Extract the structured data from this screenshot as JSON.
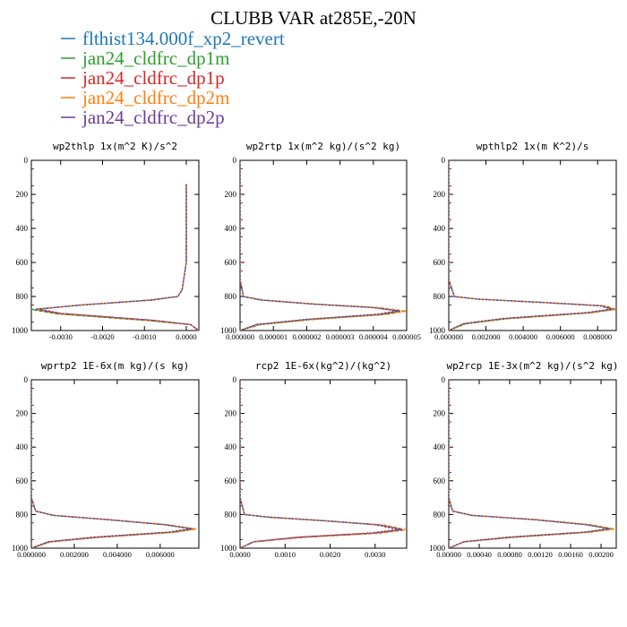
{
  "title": "CLUBB VAR at285E,-20N",
  "legend": [
    {
      "label": "flthist134.000f_xp2_revert",
      "color": "#1f77b4"
    },
    {
      "label": "jan24_cldfrc_dp1m",
      "color": "#2ca02c"
    },
    {
      "label": "jan24_cldfrc_dp1p",
      "color": "#d62728"
    },
    {
      "label": "jan24_cldfrc_dp2m",
      "color": "#ff7f0e"
    },
    {
      "label": "jan24_cldfrc_dp2p",
      "color": "#6a3d9a"
    }
  ],
  "chart_data": [
    {
      "type": "line",
      "title": "wp2thlp  1x(m^2 K)/s^2",
      "xlim": [
        -0.0037,
        0.0003
      ],
      "ylim": [
        1000,
        0
      ],
      "invert_y": true,
      "xticks": [
        -0.003,
        -0.002,
        -0.001,
        0.0
      ],
      "xtick_labels": [
        "-0.0030",
        "-0.0020",
        "-0.0010",
        "0.0000"
      ],
      "yticks": [
        0,
        200,
        400,
        600,
        800,
        1000
      ],
      "ytick_labels": [
        "0",
        "200",
        "400",
        "600",
        "800",
        "1000"
      ],
      "series": [
        {
          "color": "#1f77b4",
          "x": [
            0.0,
            0.0,
            0.0,
            -0.0001,
            -0.0002,
            -0.0008,
            -0.0025,
            -0.0036,
            -0.003,
            -0.0008,
            0.0001,
            0.0003
          ],
          "y": [
            140,
            350,
            600,
            760,
            800,
            820,
            850,
            875,
            900,
            940,
            965,
            1000
          ]
        },
        {
          "color": "#2ca02c",
          "x": [
            0.0,
            0.0,
            0.0,
            -0.0001,
            -0.0002,
            -0.0009,
            -0.0026,
            -0.0037,
            -0.0031,
            -0.0009,
            0.0001,
            0.0003
          ],
          "y": [
            140,
            350,
            600,
            760,
            800,
            822,
            852,
            877,
            902,
            942,
            966,
            1000
          ]
        },
        {
          "color": "#d62728",
          "x": [
            0.0,
            0.0,
            0.0,
            -0.0001,
            -0.0002,
            -0.0008,
            -0.0025,
            -0.0035,
            -0.003,
            -0.0008,
            0.0001,
            0.0003
          ],
          "y": [
            140,
            350,
            600,
            760,
            800,
            820,
            850,
            873,
            899,
            940,
            964,
            1000
          ]
        },
        {
          "color": "#ff7f0e",
          "x": [
            0.0,
            0.0,
            0.0,
            -0.0001,
            -0.0002,
            -0.0009,
            -0.0026,
            -0.0036,
            -0.0031,
            -0.0009,
            0.0001,
            0.0003
          ],
          "y": [
            140,
            350,
            600,
            760,
            800,
            821,
            851,
            876,
            901,
            941,
            965,
            1000
          ]
        },
        {
          "color": "#6a3d9a",
          "x": [
            0.0,
            0.0,
            0.0,
            -0.0001,
            -0.0002,
            -0.0008,
            -0.0025,
            -0.0036,
            -0.003,
            -0.0008,
            0.0001,
            0.0003
          ],
          "y": [
            140,
            350,
            600,
            760,
            800,
            820,
            850,
            875,
            900,
            940,
            965,
            1000
          ]
        }
      ]
    },
    {
      "type": "line",
      "title": "wp2rtp  1x(m^2 kg)/(s^2 kg)",
      "xlim": [
        0.0,
        5e-06
      ],
      "ylim": [
        1000,
        0
      ],
      "invert_y": true,
      "xticks": [
        0.0,
        1e-06,
        2e-06,
        3e-06,
        4e-06,
        5e-06
      ],
      "xtick_labels": [
        "0.000000",
        "0.000001",
        "0.000002",
        "0.000003",
        "0.000004",
        "0.000005"
      ],
      "yticks": [
        0,
        200,
        400,
        600,
        800,
        1000
      ],
      "ytick_labels": [
        "0",
        "200",
        "400",
        "600",
        "800",
        "1000"
      ],
      "series": [
        {
          "color": "#1f77b4",
          "x": [
            0.0,
            0.0,
            1e-07,
            6e-07,
            2.2e-06,
            4e-06,
            4.8e-06,
            4.2e-06,
            2e-06,
            5e-07,
            0.0
          ],
          "y": [
            0,
            700,
            800,
            820,
            845,
            865,
            885,
            905,
            935,
            965,
            1000
          ]
        },
        {
          "color": "#2ca02c",
          "x": [
            0.0,
            0.0,
            1e-07,
            7e-07,
            2.3e-06,
            4.1e-06,
            4.9e-06,
            4.3e-06,
            2.1e-06,
            6e-07,
            0.0
          ],
          "y": [
            0,
            700,
            800,
            821,
            846,
            866,
            886,
            906,
            936,
            966,
            1000
          ]
        },
        {
          "color": "#d62728",
          "x": [
            0.0,
            0.0,
            1e-07,
            6e-07,
            2.2e-06,
            3.9e-06,
            4.7e-06,
            4.1e-06,
            2e-06,
            5e-07,
            0.0
          ],
          "y": [
            0,
            700,
            800,
            820,
            845,
            864,
            884,
            904,
            934,
            964,
            1000
          ]
        },
        {
          "color": "#ff7f0e",
          "x": [
            0.0,
            0.0,
            1e-07,
            7e-07,
            2.4e-06,
            4.2e-06,
            5e-06,
            4.4e-06,
            2.2e-06,
            6e-07,
            0.0
          ],
          "y": [
            0,
            700,
            800,
            821,
            846,
            866,
            886,
            906,
            936,
            966,
            1000
          ]
        },
        {
          "color": "#6a3d9a",
          "x": [
            0.0,
            0.0,
            1e-07,
            6e-07,
            2.2e-06,
            4e-06,
            4.8e-06,
            4.2e-06,
            2e-06,
            5e-07,
            0.0
          ],
          "y": [
            0,
            700,
            800,
            820,
            845,
            865,
            885,
            905,
            935,
            965,
            1000
          ]
        }
      ]
    },
    {
      "type": "line",
      "title": "wpthlp2  1x(m K^2)/s",
      "xlim": [
        0.0,
        0.009
      ],
      "ylim": [
        1000,
        0
      ],
      "invert_y": true,
      "xticks": [
        0.0,
        0.002,
        0.004,
        0.006,
        0.008
      ],
      "xtick_labels": [
        "0.000000",
        "0.002000",
        "0.004000",
        "0.006000",
        "0.008000"
      ],
      "yticks": [
        0,
        200,
        400,
        600,
        800,
        1000
      ],
      "ytick_labels": [
        "0",
        "200",
        "400",
        "600",
        "800",
        "1000"
      ],
      "series": [
        {
          "color": "#1f77b4",
          "x": [
            0.0,
            0.0,
            0.0003,
            0.0015,
            0.005,
            0.0082,
            0.0088,
            0.0075,
            0.003,
            0.0008,
            0.0
          ],
          "y": [
            0,
            700,
            800,
            815,
            835,
            855,
            875,
            895,
            930,
            960,
            1000
          ]
        },
        {
          "color": "#2ca02c",
          "x": [
            0.0,
            0.0,
            0.0003,
            0.0016,
            0.0052,
            0.0084,
            0.0089,
            0.0076,
            0.0031,
            0.0009,
            0.0
          ],
          "y": [
            0,
            700,
            800,
            816,
            836,
            856,
            876,
            896,
            931,
            961,
            1000
          ]
        },
        {
          "color": "#d62728",
          "x": [
            0.0,
            0.0,
            0.0003,
            0.0015,
            0.0049,
            0.0081,
            0.0087,
            0.0074,
            0.0029,
            0.0008,
            0.0
          ],
          "y": [
            0,
            700,
            800,
            815,
            834,
            854,
            874,
            894,
            929,
            959,
            1000
          ]
        },
        {
          "color": "#ff7f0e",
          "x": [
            0.0,
            0.0,
            0.0003,
            0.0016,
            0.0053,
            0.0085,
            0.009,
            0.0077,
            0.0031,
            0.0009,
            0.0
          ],
          "y": [
            0,
            700,
            800,
            816,
            836,
            856,
            876,
            896,
            931,
            961,
            1000
          ]
        },
        {
          "color": "#6a3d9a",
          "x": [
            0.0,
            0.0,
            0.0003,
            0.0015,
            0.005,
            0.0082,
            0.0088,
            0.0075,
            0.003,
            0.0008,
            0.0
          ],
          "y": [
            0,
            700,
            800,
            815,
            835,
            855,
            875,
            895,
            930,
            960,
            1000
          ]
        }
      ]
    },
    {
      "type": "line",
      "title": "wprtp2  1E-6x(m kg)/(s kg)",
      "xlim": [
        0.0,
        0.0078
      ],
      "ylim": [
        1000,
        0
      ],
      "invert_y": true,
      "xticks": [
        0.0,
        0.002,
        0.004,
        0.006
      ],
      "xtick_labels": [
        "0.000000",
        "0.002000",
        "0.004000",
        "0.006000"
      ],
      "yticks": [
        0,
        200,
        400,
        600,
        800,
        1000
      ],
      "ytick_labels": [
        "0",
        "200",
        "400",
        "600",
        "800",
        "1000"
      ],
      "series": [
        {
          "color": "#1f77b4",
          "x": [
            0.0,
            0.0,
            0.0002,
            0.001,
            0.0035,
            0.0062,
            0.0075,
            0.0065,
            0.003,
            0.0008,
            0.0
          ],
          "y": [
            0,
            700,
            780,
            805,
            830,
            860,
            885,
            905,
            935,
            962,
            1000
          ]
        },
        {
          "color": "#2ca02c",
          "x": [
            0.0,
            0.0,
            0.0002,
            0.0011,
            0.0036,
            0.0063,
            0.0076,
            0.0066,
            0.0031,
            0.0009,
            0.0
          ],
          "y": [
            0,
            700,
            780,
            806,
            831,
            861,
            886,
            906,
            936,
            963,
            1000
          ]
        },
        {
          "color": "#d62728",
          "x": [
            0.0,
            0.0,
            0.0002,
            0.001,
            0.0034,
            0.0061,
            0.0074,
            0.0064,
            0.0029,
            0.0008,
            0.0
          ],
          "y": [
            0,
            700,
            780,
            805,
            829,
            859,
            884,
            904,
            934,
            961,
            1000
          ]
        },
        {
          "color": "#ff7f0e",
          "x": [
            0.0,
            0.0,
            0.0002,
            0.0011,
            0.0037,
            0.0064,
            0.0077,
            0.0067,
            0.0031,
            0.0009,
            0.0
          ],
          "y": [
            0,
            700,
            780,
            806,
            831,
            861,
            886,
            906,
            936,
            963,
            1000
          ]
        },
        {
          "color": "#6a3d9a",
          "x": [
            0.0,
            0.0,
            0.0002,
            0.001,
            0.0035,
            0.0062,
            0.0075,
            0.0065,
            0.003,
            0.0008,
            0.0
          ],
          "y": [
            0,
            700,
            780,
            805,
            830,
            860,
            885,
            905,
            935,
            962,
            1000
          ]
        }
      ]
    },
    {
      "type": "line",
      "title": "rcp2  1E-6x(kg^2)/(kg^2)",
      "xlim": [
        0.0,
        0.0037
      ],
      "ylim": [
        1000,
        0
      ],
      "invert_y": true,
      "xticks": [
        0.0,
        0.001,
        0.002,
        0.003
      ],
      "xtick_labels": [
        "0.0000",
        "0.0010",
        "0.0020",
        "0.0030"
      ],
      "yticks": [
        0,
        200,
        400,
        600,
        800,
        1000
      ],
      "ytick_labels": [
        "0",
        "200",
        "400",
        "600",
        "800",
        "1000"
      ],
      "series": [
        {
          "color": "#1f77b4",
          "x": [
            0.0,
            0.0,
            0.0001,
            0.0006,
            0.0019,
            0.0031,
            0.0036,
            0.003,
            0.0013,
            0.0003,
            0.0
          ],
          "y": [
            0,
            700,
            800,
            815,
            838,
            862,
            890,
            910,
            935,
            962,
            1000
          ]
        },
        {
          "color": "#2ca02c",
          "x": [
            0.0,
            0.0,
            0.0001,
            0.0006,
            0.002,
            0.0032,
            0.0037,
            0.0031,
            0.0014,
            0.0003,
            0.0
          ],
          "y": [
            0,
            700,
            800,
            816,
            839,
            863,
            891,
            911,
            936,
            963,
            1000
          ]
        },
        {
          "color": "#d62728",
          "x": [
            0.0,
            0.0,
            0.0001,
            0.0006,
            0.0019,
            0.003,
            0.0035,
            0.0029,
            0.0013,
            0.0003,
            0.0
          ],
          "y": [
            0,
            700,
            800,
            815,
            837,
            861,
            889,
            909,
            934,
            961,
            1000
          ]
        },
        {
          "color": "#ff7f0e",
          "x": [
            0.0,
            0.0,
            0.0001,
            0.0006,
            0.002,
            0.0032,
            0.0037,
            0.0031,
            0.0014,
            0.0003,
            0.0
          ],
          "y": [
            0,
            700,
            800,
            816,
            839,
            863,
            891,
            911,
            936,
            963,
            1000
          ]
        },
        {
          "color": "#6a3d9a",
          "x": [
            0.0,
            0.0,
            0.0001,
            0.0006,
            0.0019,
            0.0031,
            0.0036,
            0.003,
            0.0013,
            0.0003,
            0.0
          ],
          "y": [
            0,
            700,
            800,
            815,
            838,
            862,
            890,
            910,
            935,
            962,
            1000
          ]
        }
      ]
    },
    {
      "type": "line",
      "title": "wp2rcp  1E-3x(m^2 kg)/(s^2 kg)",
      "xlim": [
        0.0,
        0.0022
      ],
      "ylim": [
        1000,
        0
      ],
      "invert_y": true,
      "xticks": [
        0.0,
        0.0004,
        0.0008,
        0.0012,
        0.0016,
        0.002
      ],
      "xtick_labels": [
        "0.00000",
        "0.00040",
        "0.00080",
        "0.00120",
        "0.00160",
        "0.00200"
      ],
      "yticks": [
        0,
        200,
        400,
        600,
        800,
        1000
      ],
      "ytick_labels": [
        "0",
        "200",
        "400",
        "600",
        "800",
        "1000"
      ],
      "series": [
        {
          "color": "#1f77b4",
          "x": [
            0.0,
            0.0,
            5e-05,
            0.0003,
            0.0011,
            0.0018,
            0.00212,
            0.0018,
            0.0008,
            0.0002,
            0.0
          ],
          "y": [
            0,
            700,
            780,
            805,
            830,
            860,
            885,
            905,
            935,
            962,
            1000
          ]
        },
        {
          "color": "#2ca02c",
          "x": [
            0.0,
            0.0,
            5e-05,
            0.0003,
            0.00115,
            0.00185,
            0.00215,
            0.00182,
            0.00082,
            0.0002,
            0.0
          ],
          "y": [
            0,
            700,
            780,
            806,
            831,
            861,
            886,
            906,
            936,
            963,
            1000
          ]
        },
        {
          "color": "#d62728",
          "x": [
            0.0,
            0.0,
            5e-05,
            0.0003,
            0.00108,
            0.00178,
            0.0021,
            0.00178,
            0.00079,
            0.0002,
            0.0
          ],
          "y": [
            0,
            700,
            780,
            805,
            829,
            859,
            884,
            904,
            934,
            961,
            1000
          ]
        },
        {
          "color": "#ff7f0e",
          "x": [
            0.0,
            0.0,
            5e-05,
            0.0003,
            0.00118,
            0.00188,
            0.00218,
            0.00185,
            0.00084,
            0.0002,
            0.0
          ],
          "y": [
            0,
            700,
            780,
            806,
            831,
            861,
            886,
            906,
            936,
            963,
            1000
          ]
        },
        {
          "color": "#6a3d9a",
          "x": [
            0.0,
            0.0,
            5e-05,
            0.0003,
            0.0011,
            0.0018,
            0.00212,
            0.0018,
            0.0008,
            0.0002,
            0.0
          ],
          "y": [
            0,
            700,
            780,
            805,
            830,
            860,
            885,
            905,
            935,
            962,
            1000
          ]
        }
      ]
    }
  ]
}
